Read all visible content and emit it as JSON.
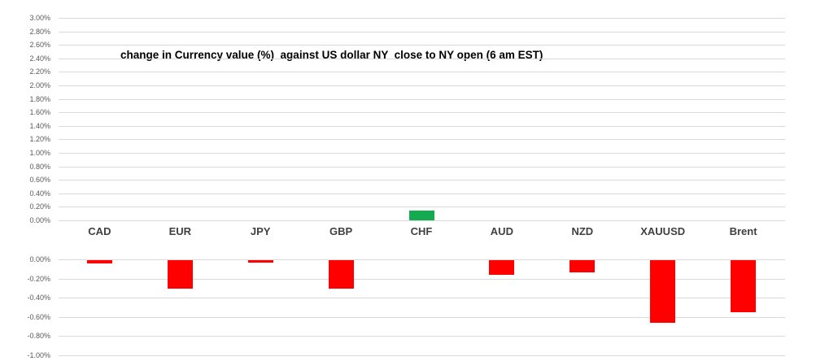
{
  "chart_data": {
    "type": "bar",
    "title": "change in Currency value (%)  against US dollar NY  close to NY open (6 am EST)",
    "categories": [
      "CAD",
      "EUR",
      "JPY",
      "GBP",
      "CHF",
      "AUD",
      "NZD",
      "XAUUSD",
      "Brent"
    ],
    "values": [
      -0.04,
      -0.3,
      -0.03,
      -0.3,
      0.15,
      -0.16,
      -0.13,
      -0.66,
      -0.55
    ],
    "unit": "%",
    "xlabel": "",
    "ylabel": "",
    "grid": true,
    "legend": false,
    "panels": [
      {
        "name": "positive-panel",
        "ylim": [
          0.0,
          3.0
        ],
        "tick_step": 0.2,
        "ticks": [
          "3.00%",
          "2.80%",
          "2.60%",
          "2.40%",
          "2.20%",
          "2.00%",
          "1.80%",
          "1.60%",
          "1.40%",
          "1.20%",
          "1.00%",
          "0.80%",
          "0.60%",
          "0.40%",
          "0.20%",
          "0.00%"
        ]
      },
      {
        "name": "negative-panel",
        "ylim": [
          -1.0,
          0.0
        ],
        "tick_step": 0.2,
        "ticks": [
          "0.00%",
          "-0.20%",
          "-0.40%",
          "-0.60%",
          "-0.80%",
          "-1.00%"
        ]
      }
    ],
    "colors": {
      "positive_bar": "#14aa50",
      "negative_bar": "#ff0000",
      "gridline": "#d9d9d9",
      "axis_text": "#595959",
      "category_text": "#404040",
      "title_text": "#000000",
      "background": "#ffffff"
    }
  }
}
